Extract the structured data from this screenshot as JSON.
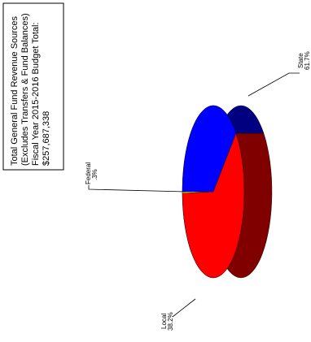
{
  "title_lines": [
    "Total General Fund Revenue Sources",
    "(Excludes Transfers & Fund Balances)",
    "Fiscal Year 2015-2016 Budget Total:",
    "$257,687,338"
  ],
  "chart_data": {
    "type": "pie",
    "title": "Total General Fund Revenue Sources (Excludes Transfers & Fund Balances) Fiscal Year 2015-2016 Budget Total: $257,687,338",
    "slices": [
      {
        "label": "State",
        "percent_label": "61.7%",
        "value": 61.7,
        "color": "#ff0000",
        "side_color": "#800000"
      },
      {
        "label": "Federal",
        "percent_label": ".3%",
        "value": 0.3,
        "color": "#ffff00",
        "side_color": "#808000"
      },
      {
        "label": "Local",
        "percent_label": "38.2%",
        "value": 38.2,
        "color": "#0000ff",
        "side_color": "#000080"
      }
    ],
    "style": "3D pie, rotated 90 degrees"
  }
}
